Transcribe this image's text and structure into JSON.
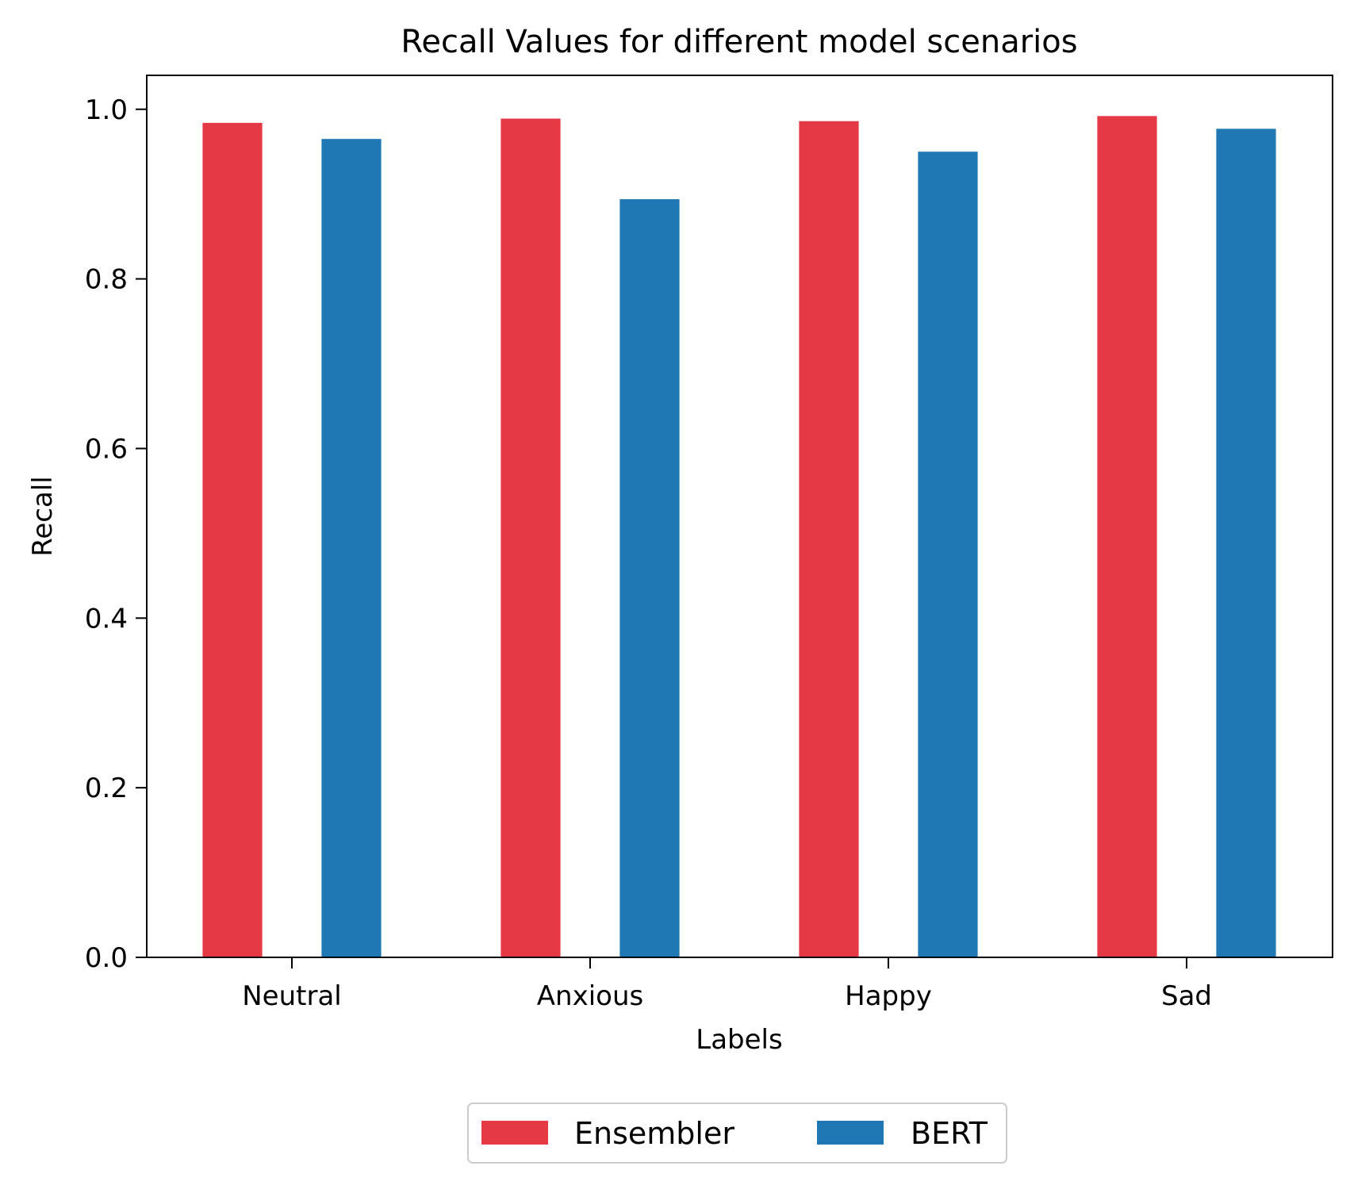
{
  "chart_data": {
    "type": "bar",
    "title": "Recall Values for different model scenarios",
    "xlabel": "Labels",
    "ylabel": "Recall",
    "categories": [
      "Neutral",
      "Anxious",
      "Happy",
      "Sad"
    ],
    "series": [
      {
        "name": "Ensembler",
        "color": "#e63946",
        "values": [
          0.984,
          0.989,
          0.986,
          0.992
        ]
      },
      {
        "name": "BERT",
        "color": "#1f77b4",
        "values": [
          0.965,
          0.894,
          0.95,
          0.977
        ]
      }
    ],
    "ylim": [
      0,
      1.04
    ],
    "yticks": [
      "0.0",
      "0.2",
      "0.4",
      "0.6",
      "0.8",
      "1.0"
    ],
    "grid": false,
    "legend_position": "bottom-center"
  }
}
